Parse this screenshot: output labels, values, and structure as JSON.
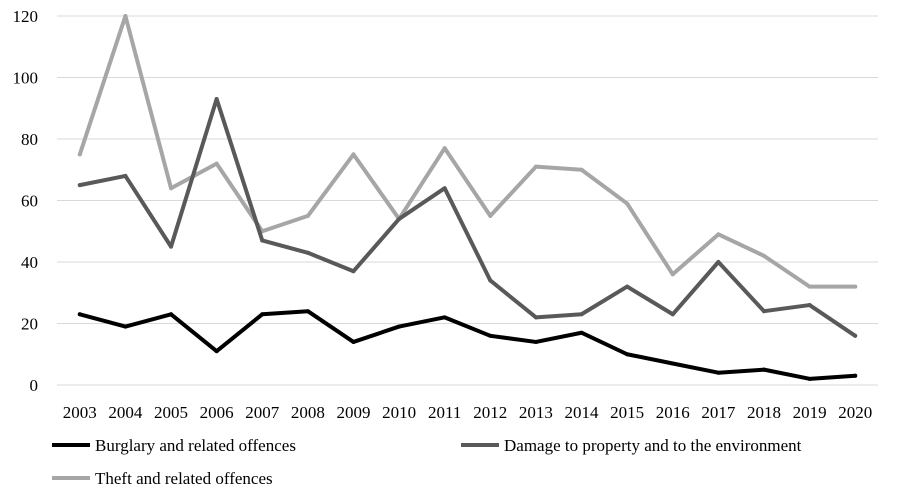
{
  "chart_data": {
    "type": "line",
    "title": "",
    "xlabel": "",
    "ylabel": "",
    "x": [
      "2003",
      "2004",
      "2005",
      "2006",
      "2007",
      "2008",
      "2009",
      "2010",
      "2011",
      "2012",
      "2013",
      "2014",
      "2015",
      "2016",
      "2017",
      "2018",
      "2019",
      "2020"
    ],
    "ylim": [
      0,
      120
    ],
    "yticks": [
      0,
      20,
      40,
      60,
      80,
      100,
      120
    ],
    "grid": true,
    "legend_position": "bottom",
    "series": [
      {
        "name": "Burglary and related offences",
        "color": "#000000",
        "values": [
          23,
          19,
          23,
          11,
          23,
          24,
          14,
          19,
          22,
          16,
          14,
          17,
          10,
          7,
          4,
          5,
          2,
          3
        ]
      },
      {
        "name": "Damage to property and to the environment",
        "color": "#595959",
        "values": [
          65,
          68,
          45,
          93,
          47,
          43,
          37,
          54,
          64,
          34,
          22,
          23,
          32,
          23,
          40,
          24,
          26,
          16
        ]
      },
      {
        "name": "Theft and related offences",
        "color": "#a6a6a6",
        "values": [
          75,
          120,
          64,
          72,
          50,
          55,
          75,
          54,
          77,
          55,
          71,
          70,
          59,
          36,
          49,
          42,
          32,
          32
        ]
      }
    ]
  }
}
